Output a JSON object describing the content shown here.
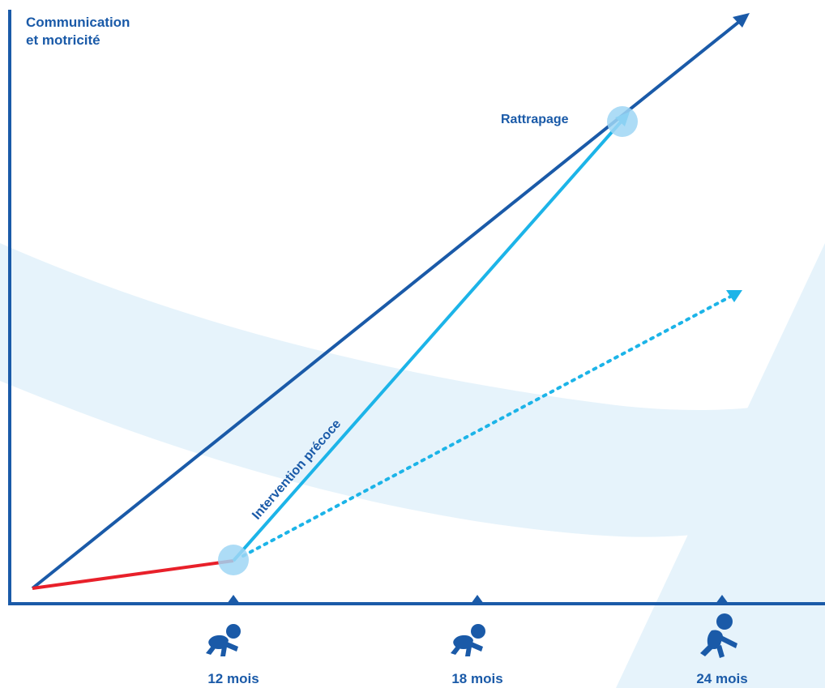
{
  "y_axis_label": [
    "Communication",
    "et motricité"
  ],
  "x_ticks": [
    {
      "label": "12 mois",
      "icon": "crawling-baby-icon"
    },
    {
      "label": "18 mois",
      "icon": "crawling-baby-icon"
    },
    {
      "label": "24 mois",
      "icon": "crawling-baby-icon"
    }
  ],
  "annotations": {
    "catch_up": "Rattrapage",
    "intervention": "Intervention précoce"
  },
  "colors": {
    "axis": "#1a5aa8",
    "typical_path": "#1a5aa8",
    "delay": "#e8202a",
    "intervention": "#1cb4e8",
    "untreated": "#1cb4e8",
    "background_band": "#e6f3fb",
    "marker": "#9fd6f5",
    "text": "#1a5aa8"
  }
}
